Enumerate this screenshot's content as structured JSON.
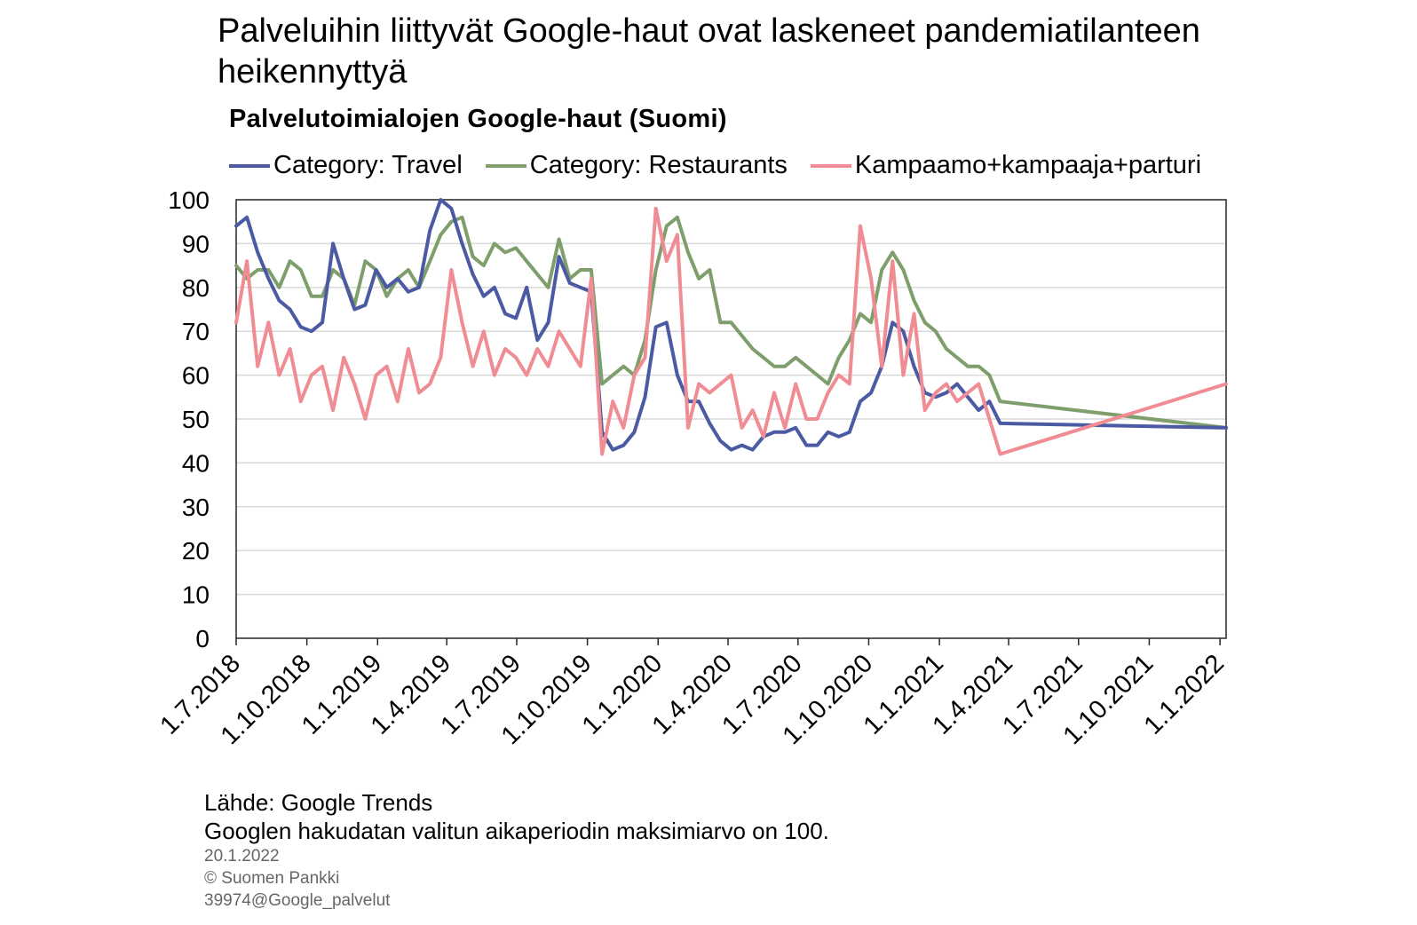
{
  "headline": "Palveluihin liittyvät Google-haut ovat laskeneet pandemiatilanteen heikennyttyä",
  "notes": {
    "source": "Lähde: Google Trends",
    "footnote": "Googlen hakudatan valitun aikaperiodin maksimiarvo on 100.",
    "date": "20.1.2022",
    "copyright": "© Suomen Pankki",
    "code": "39974@Google_palvelut"
  },
  "chart_data": {
    "type": "line",
    "title": "Palvelutoimialojen Google-haut (Suomi)",
    "ylim": [
      0,
      100
    ],
    "yticks": [
      0,
      10,
      20,
      30,
      40,
      50,
      60,
      70,
      80,
      90,
      100
    ],
    "grid": "horizontal",
    "legend": "top",
    "x_start": "1.7.2018",
    "x_end": "9.1.2022",
    "x_step": "biweekly",
    "xticks": [
      "1.7.2018",
      "1.10.2018",
      "1.1.2019",
      "1.4.2019",
      "1.7.2019",
      "1.10.2019",
      "1.1.2020",
      "1.4.2020",
      "1.7.2020",
      "1.10.2020",
      "1.1.2021",
      "1.4.2021",
      "1.7.2021",
      "1.10.2021",
      "1.1.2022"
    ],
    "series": [
      {
        "name": "Category: Travel",
        "color": "#4B5AA3",
        "values": [
          94,
          96,
          88,
          82,
          77,
          75,
          71,
          70,
          72,
          90,
          82,
          75,
          76,
          84,
          80,
          82,
          79,
          80,
          93,
          100,
          98,
          90,
          83,
          78,
          80,
          74,
          73,
          80,
          68,
          72,
          87,
          81,
          80,
          79,
          47,
          43,
          44,
          47,
          55,
          71,
          72,
          60,
          54,
          54,
          49,
          45,
          43,
          44,
          43,
          46,
          47,
          47,
          48,
          44,
          44,
          47,
          46,
          47,
          54,
          56,
          62,
          72,
          70,
          62,
          56,
          55,
          56,
          58,
          55,
          52,
          54,
          49,
          48
        ]
      },
      {
        "name": "Category: Restaurants",
        "color": "#7E9E6B",
        "values": [
          85,
          82,
          84,
          84,
          80,
          86,
          84,
          78,
          78,
          84,
          82,
          76,
          86,
          84,
          78,
          82,
          84,
          80,
          86,
          92,
          95,
          96,
          87,
          85,
          90,
          88,
          89,
          86,
          83,
          80,
          91,
          82,
          84,
          84,
          58,
          60,
          62,
          60,
          68,
          84,
          94,
          96,
          88,
          82,
          84,
          72,
          72,
          69,
          66,
          64,
          62,
          62,
          64,
          62,
          60,
          58,
          64,
          68,
          74,
          72,
          84,
          88,
          84,
          77,
          72,
          70,
          66,
          64,
          62,
          62,
          60,
          54,
          48
        ]
      },
      {
        "name": "Kampaamo+kampaaja+parturi",
        "color": "#F08C94",
        "values": [
          72,
          86,
          62,
          72,
          60,
          66,
          54,
          60,
          62,
          52,
          64,
          58,
          50,
          60,
          62,
          54,
          66,
          56,
          58,
          64,
          84,
          72,
          62,
          70,
          60,
          66,
          64,
          60,
          66,
          62,
          70,
          66,
          62,
          82,
          42,
          54,
          48,
          60,
          64,
          98,
          86,
          92,
          48,
          58,
          56,
          58,
          60,
          48,
          52,
          46,
          56,
          48,
          58,
          50,
          50,
          56,
          60,
          58,
          94,
          82,
          62,
          86,
          60,
          74,
          52,
          56,
          58,
          54,
          56,
          58,
          50,
          42,
          58
        ]
      }
    ]
  }
}
